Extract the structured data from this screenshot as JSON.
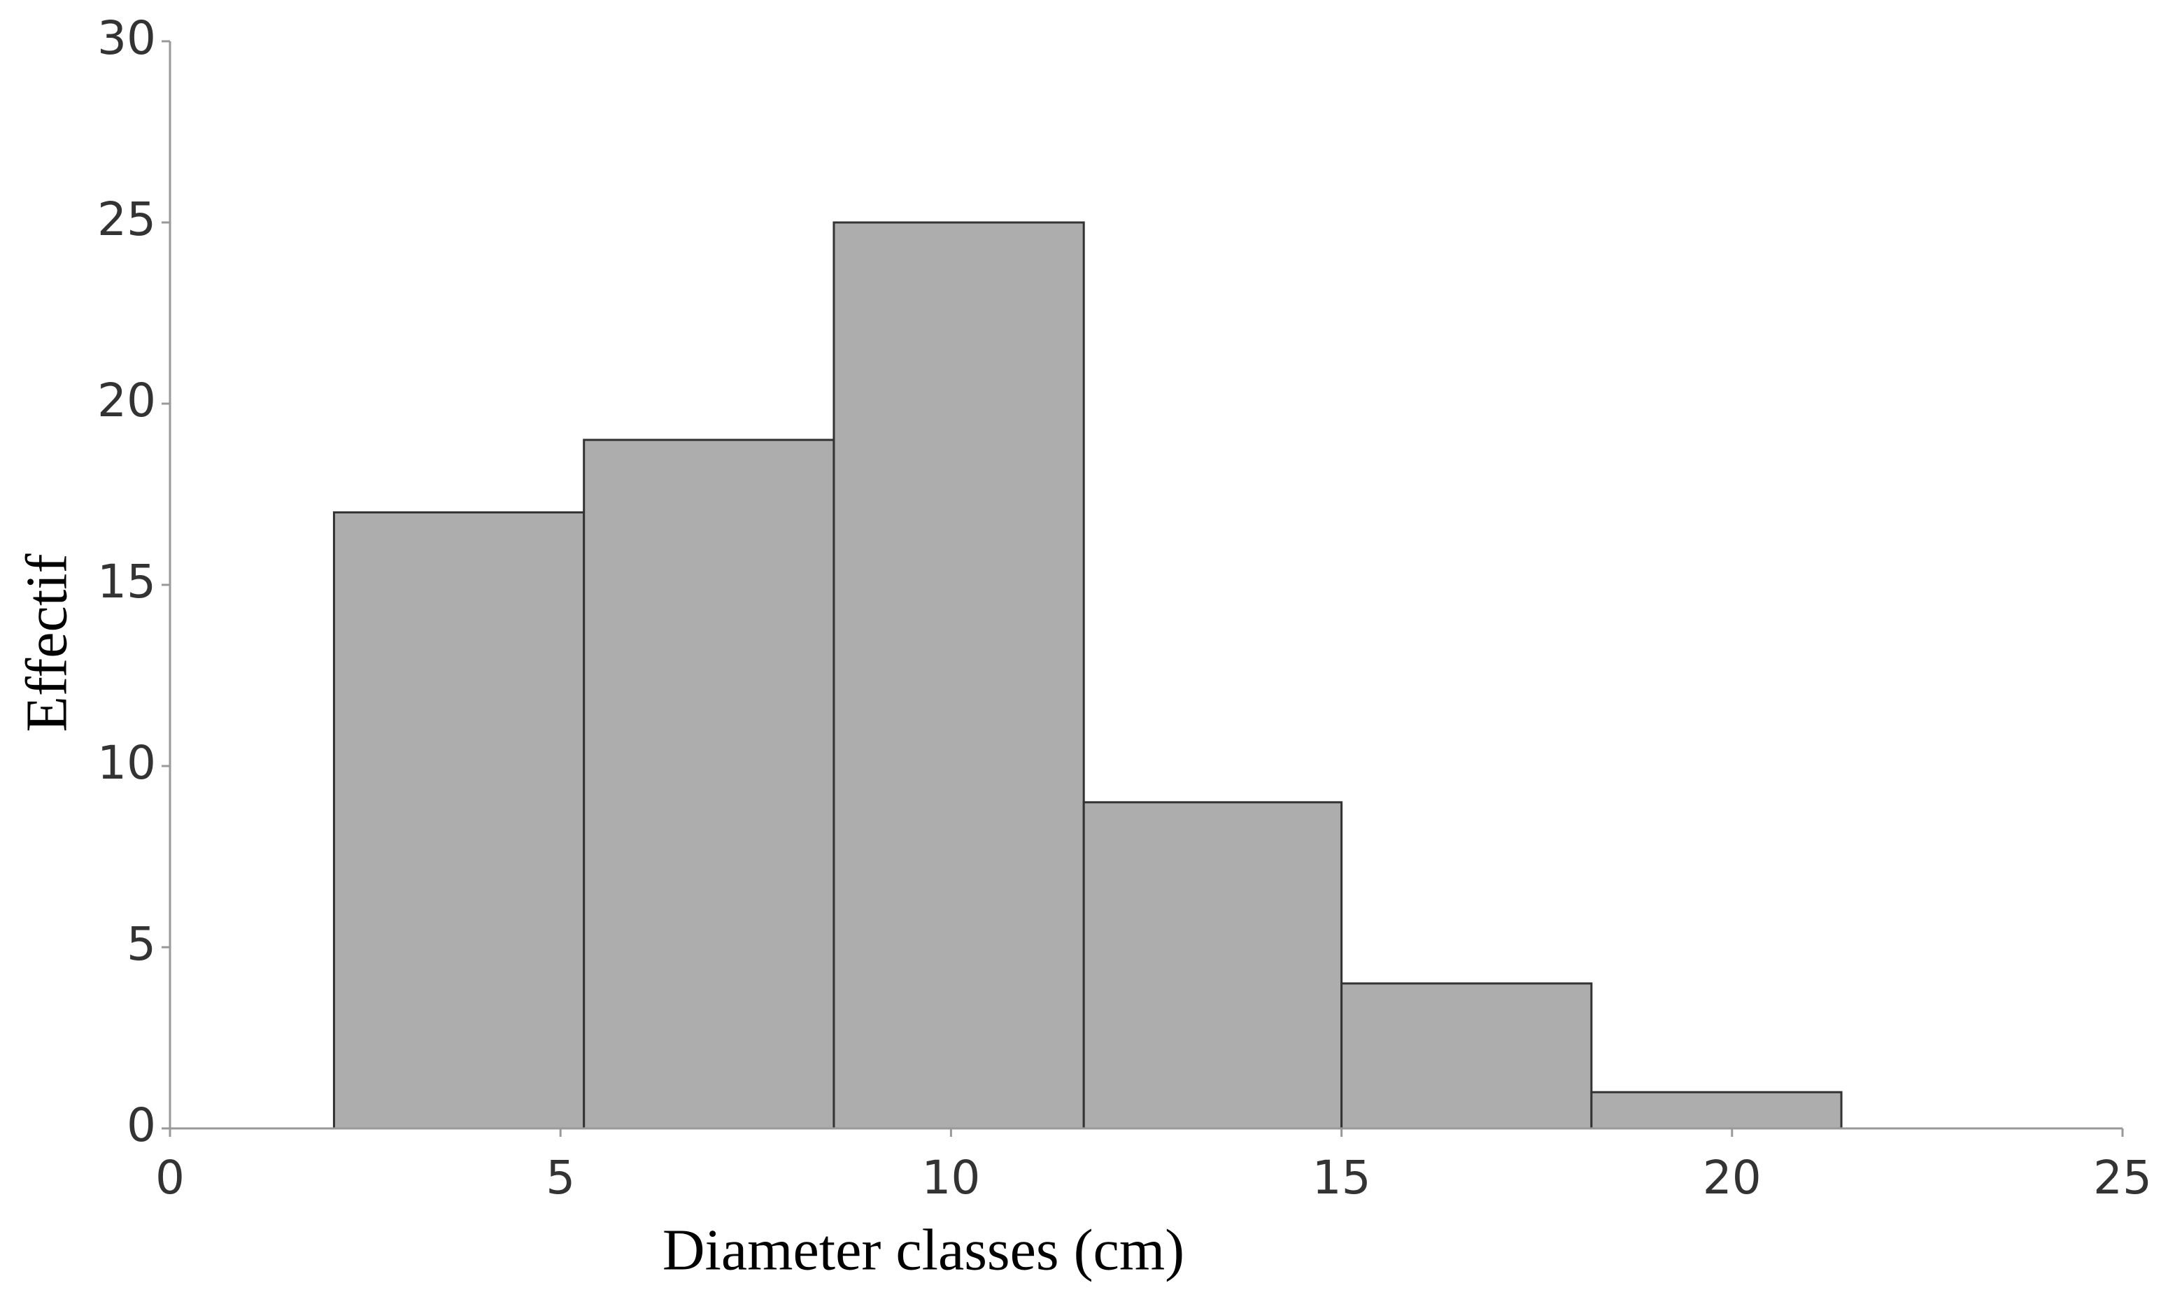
{
  "chart_data": {
    "type": "histogram",
    "xlabel": "Diameter classes (cm)",
    "ylabel": "Effectif",
    "bins": [
      2.1,
      5.3,
      8.5,
      11.7,
      15.0,
      18.2,
      21.4
    ],
    "counts": [
      17,
      19,
      25,
      9,
      4,
      1
    ],
    "color": "#adadad",
    "edgecolor": "#333333",
    "xlim": [
      0,
      25
    ],
    "xticks": [
      0,
      5,
      10,
      15,
      20,
      25
    ],
    "ylim": [
      0,
      30
    ],
    "yticks": [
      0,
      5,
      10,
      15,
      20,
      25,
      30
    ],
    "grid": false
  }
}
